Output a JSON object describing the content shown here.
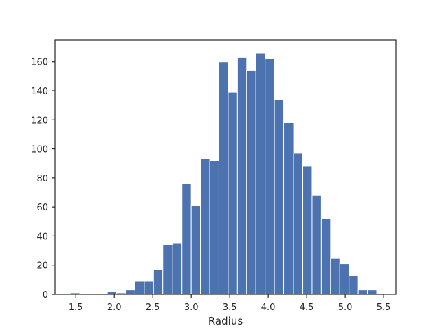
{
  "chart_data": {
    "type": "bar",
    "title": "",
    "xlabel": "Radius",
    "ylabel": "",
    "xlim": [
      1.23,
      5.66
    ],
    "ylim": [
      0,
      175
    ],
    "grid": false,
    "bar_color": "#4c72b0",
    "bar_edge_color": "#ffffff",
    "x_ticks": [
      1.5,
      2.0,
      2.5,
      3.0,
      3.5,
      4.0,
      4.5,
      5.0,
      5.5
    ],
    "x_tick_labels": [
      "1.5",
      "2.0",
      "2.5",
      "3.0",
      "3.5",
      "4.0",
      "4.5",
      "5.0",
      "5.5"
    ],
    "y_ticks": [
      0,
      20,
      40,
      60,
      80,
      100,
      120,
      140,
      160
    ],
    "y_tick_labels": [
      "0",
      "20",
      "40",
      "60",
      "80",
      "100",
      "120",
      "140",
      "160"
    ],
    "bins": [
      {
        "x0": 1.43,
        "x1": 1.55,
        "count": 1
      },
      {
        "x0": 1.55,
        "x1": 1.67,
        "count": 0
      },
      {
        "x0": 1.67,
        "x1": 1.79,
        "count": 0
      },
      {
        "x0": 1.79,
        "x1": 1.91,
        "count": 0
      },
      {
        "x0": 1.91,
        "x1": 2.03,
        "count": 2
      },
      {
        "x0": 2.03,
        "x1": 2.15,
        "count": 1
      },
      {
        "x0": 2.15,
        "x1": 2.27,
        "count": 3
      },
      {
        "x0": 2.27,
        "x1": 2.39,
        "count": 9
      },
      {
        "x0": 2.39,
        "x1": 2.51,
        "count": 9
      },
      {
        "x0": 2.51,
        "x1": 2.63,
        "count": 17
      },
      {
        "x0": 2.63,
        "x1": 2.76,
        "count": 34
      },
      {
        "x0": 2.76,
        "x1": 2.88,
        "count": 35
      },
      {
        "x0": 2.88,
        "x1": 3.0,
        "count": 76
      },
      {
        "x0": 3.0,
        "x1": 3.12,
        "count": 61
      },
      {
        "x0": 3.12,
        "x1": 3.24,
        "count": 93
      },
      {
        "x0": 3.24,
        "x1": 3.36,
        "count": 92
      },
      {
        "x0": 3.36,
        "x1": 3.48,
        "count": 160
      },
      {
        "x0": 3.48,
        "x1": 3.6,
        "count": 139
      },
      {
        "x0": 3.6,
        "x1": 3.72,
        "count": 163
      },
      {
        "x0": 3.72,
        "x1": 3.84,
        "count": 154
      },
      {
        "x0": 3.84,
        "x1": 3.96,
        "count": 166
      },
      {
        "x0": 3.96,
        "x1": 4.08,
        "count": 162
      },
      {
        "x0": 4.08,
        "x1": 4.2,
        "count": 134
      },
      {
        "x0": 4.2,
        "x1": 4.33,
        "count": 118
      },
      {
        "x0": 4.33,
        "x1": 4.45,
        "count": 97
      },
      {
        "x0": 4.45,
        "x1": 4.57,
        "count": 88
      },
      {
        "x0": 4.57,
        "x1": 4.69,
        "count": 68
      },
      {
        "x0": 4.69,
        "x1": 4.81,
        "count": 52
      },
      {
        "x0": 4.81,
        "x1": 4.93,
        "count": 25
      },
      {
        "x0": 4.93,
        "x1": 5.05,
        "count": 21
      },
      {
        "x0": 5.05,
        "x1": 5.17,
        "count": 13
      },
      {
        "x0": 5.17,
        "x1": 5.29,
        "count": 3
      },
      {
        "x0": 5.29,
        "x1": 5.41,
        "count": 3
      }
    ]
  }
}
